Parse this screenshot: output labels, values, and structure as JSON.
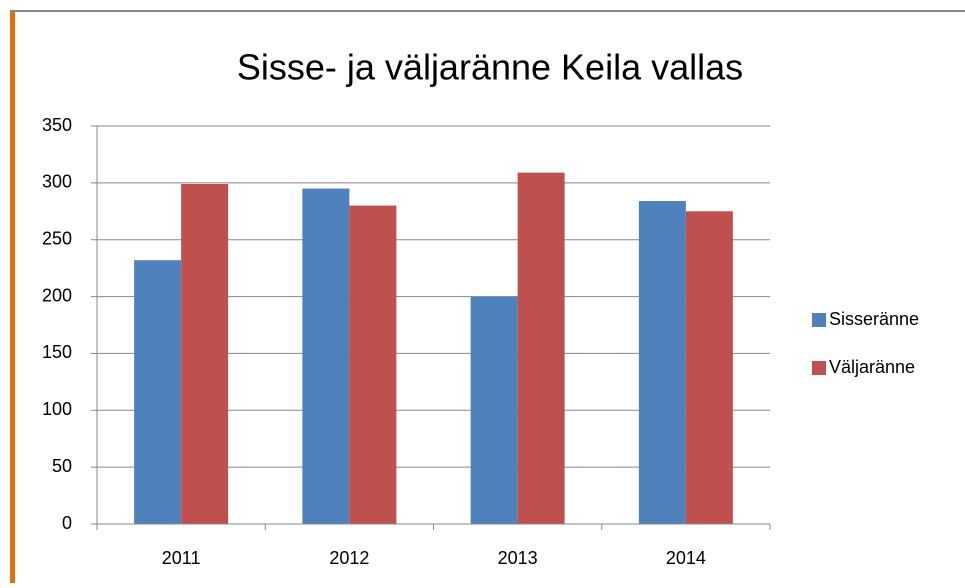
{
  "chart_data": {
    "type": "bar",
    "title": "Sisse- ja väljaränne Keila vallas",
    "categories": [
      "2011",
      "2012",
      "2013",
      "2014"
    ],
    "series": [
      {
        "name": "Sisseränne",
        "color": "#4f81bd",
        "values": [
          232,
          295,
          200,
          284
        ]
      },
      {
        "name": "Väljaränne",
        "color": "#c0504d",
        "values": [
          299,
          280,
          309,
          275
        ]
      }
    ],
    "ylim": [
      0,
      350
    ],
    "yticks": [
      0,
      50,
      100,
      150,
      200,
      250,
      300,
      350
    ],
    "grid": true,
    "legend": "right"
  }
}
